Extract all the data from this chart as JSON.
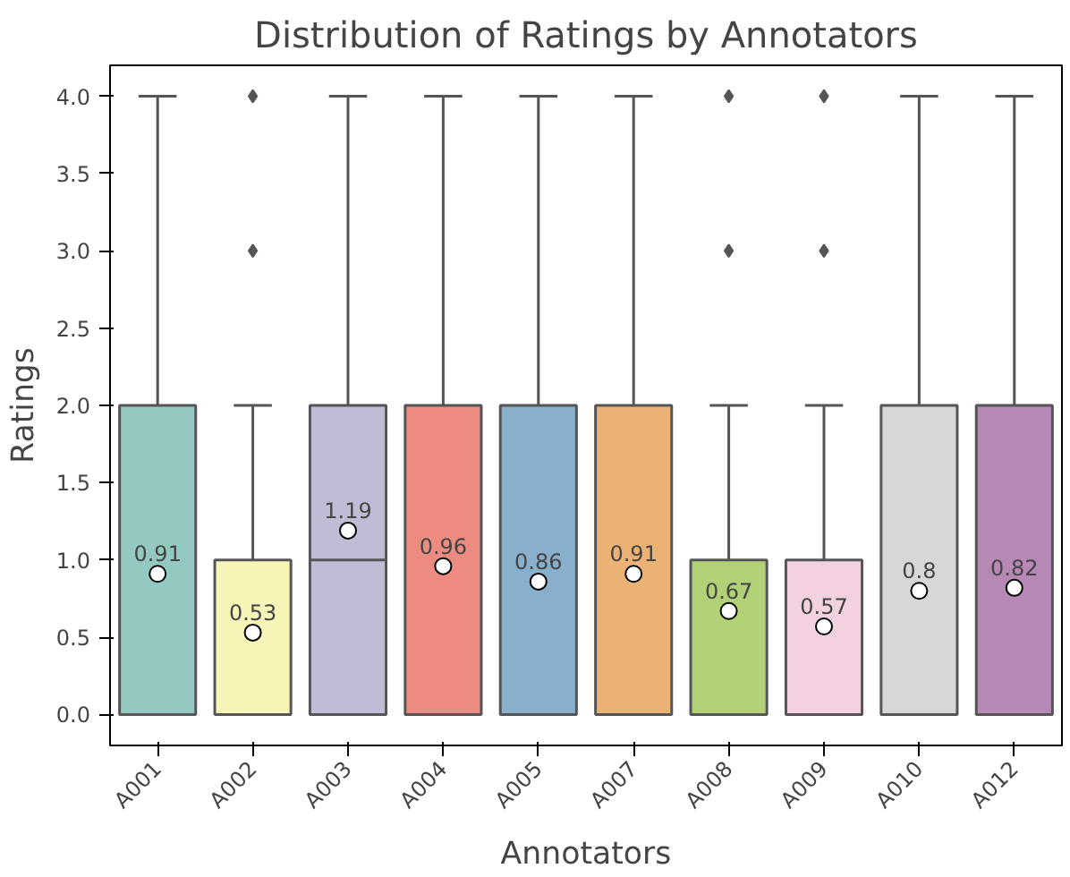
{
  "chart_data": {
    "type": "box",
    "title": "Distribution of Ratings by Annotators",
    "xlabel": "Annotators",
    "ylabel": "Ratings",
    "categories": [
      "A001",
      "A002",
      "A003",
      "A004",
      "A005",
      "A007",
      "A008",
      "A009",
      "A010",
      "A012"
    ],
    "colors": [
      "#93c9c0",
      "#f6f5b7",
      "#c0bcd5",
      "#ec8c80",
      "#88afcb",
      "#ebb275",
      "#b2d177",
      "#f3d1e0",
      "#d7d7d7",
      "#b688b6"
    ],
    "boxes": [
      {
        "low": 0,
        "q1": 0,
        "median": 0,
        "q3": 2,
        "high": 4
      },
      {
        "low": 0,
        "q1": 0,
        "median": 0,
        "q3": 1,
        "high": 2,
        "outliers": [
          3,
          4
        ]
      },
      {
        "low": 0,
        "q1": 0,
        "median": 1,
        "q3": 2,
        "high": 4
      },
      {
        "low": 0,
        "q1": 0,
        "median": 0,
        "q3": 2,
        "high": 4
      },
      {
        "low": 0,
        "q1": 0,
        "median": 0,
        "q3": 2,
        "high": 4
      },
      {
        "low": 0,
        "q1": 0,
        "median": 0,
        "q3": 2,
        "high": 4
      },
      {
        "low": 0,
        "q1": 0,
        "median": 0,
        "q3": 1,
        "high": 2,
        "outliers": [
          3,
          4
        ]
      },
      {
        "low": 0,
        "q1": 0,
        "median": 0,
        "q3": 1,
        "high": 2,
        "outliers": [
          3,
          4
        ]
      },
      {
        "low": 0,
        "q1": 0,
        "median": 0,
        "q3": 2,
        "high": 4
      },
      {
        "low": 0,
        "q1": 0,
        "median": 0,
        "q3": 2,
        "high": 4
      }
    ],
    "series": [
      {
        "type": "scatter",
        "color": "#ffffff",
        "marker": "circle",
        "data_labels": true,
        "x": [
          "A001",
          "A002",
          "A003",
          "A004",
          "A005",
          "A007",
          "A008",
          "A009",
          "A010",
          "A012"
        ],
        "values": [
          0.91,
          0.53,
          1.19,
          0.96,
          0.86,
          0.91,
          0.67,
          0.57,
          0.8,
          0.82
        ]
      }
    ],
    "ylim": [
      -0.2,
      4.2
    ],
    "yticks": [
      {
        "value": 0,
        "label": "0.0"
      },
      {
        "value": 0.5,
        "label": "0.5"
      },
      {
        "value": 1,
        "label": "1.0"
      },
      {
        "value": 1.5,
        "label": "1.5"
      },
      {
        "value": 2,
        "label": "2.0"
      },
      {
        "value": 2.5,
        "label": "2.5"
      },
      {
        "value": 3,
        "label": "3.0"
      },
      {
        "value": 3.5,
        "label": "3.5"
      },
      {
        "value": 4,
        "label": "4.0"
      }
    ],
    "grid": false
  }
}
